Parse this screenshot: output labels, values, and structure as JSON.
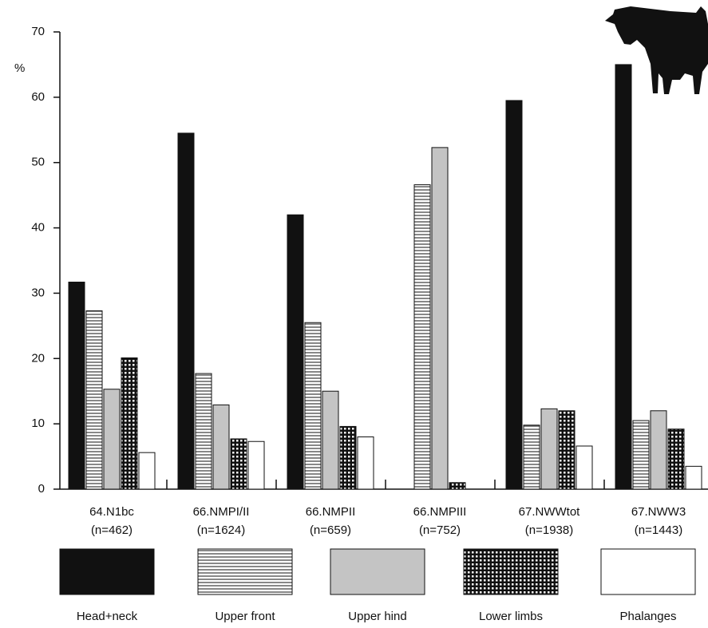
{
  "chart_data": {
    "type": "bar",
    "y_label": "%",
    "categories": [
      "64.N1bc",
      "66.NMPI/II",
      "66.NMPII",
      "66.NMPIII",
      "67.NWWtot",
      "67.NWW3"
    ],
    "category_sublabels": [
      "(n=462)",
      "(n=1624)",
      "(n=659)",
      "(n=752)",
      "(n=1938)",
      "(n=1443)"
    ],
    "series": [
      {
        "name": "Head+neck",
        "color": "#111111",
        "pattern": "solid",
        "values": [
          31.7,
          54.5,
          42.0,
          null,
          59.5,
          65.0
        ]
      },
      {
        "name": "Upper front",
        "color": "#ffffff",
        "pattern": "hlines",
        "values": [
          27.3,
          17.7,
          25.5,
          46.6,
          9.8,
          10.5
        ]
      },
      {
        "name": "Upper hind",
        "color": "#c4c4c4",
        "pattern": "solid",
        "values": [
          15.3,
          12.9,
          15.0,
          52.3,
          12.3,
          12.0
        ]
      },
      {
        "name": "Lower limbs",
        "color": "#ffffff",
        "pattern": "grid",
        "values": [
          20.1,
          7.7,
          9.6,
          1.0,
          12.0,
          9.2
        ]
      },
      {
        "name": "Phalanges",
        "color": "#ffffff",
        "pattern": "solid",
        "values": [
          5.6,
          7.3,
          8.0,
          null,
          6.6,
          3.5
        ]
      }
    ],
    "ylim": [
      0,
      70
    ],
    "yticks": [
      0,
      10,
      20,
      30,
      40,
      50,
      60,
      70
    ],
    "grid": false
  }
}
